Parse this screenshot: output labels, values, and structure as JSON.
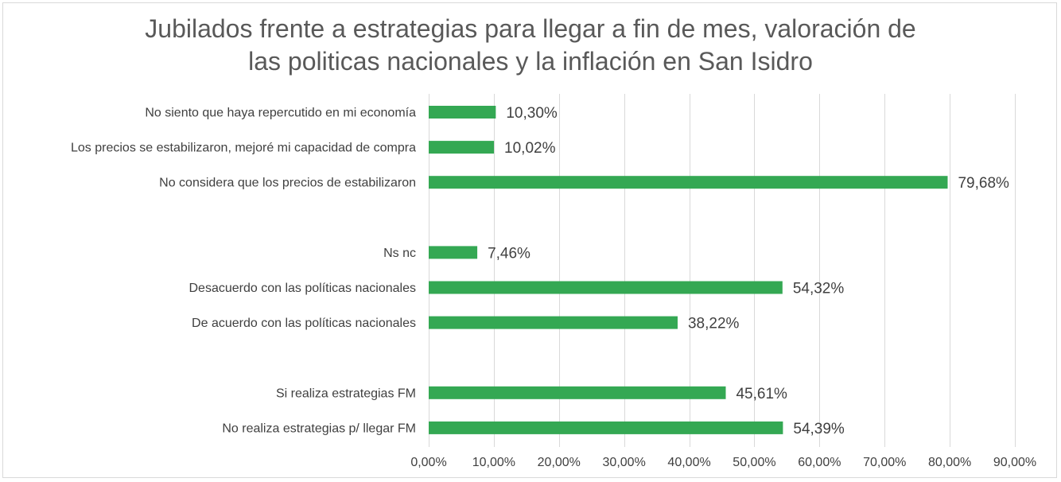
{
  "chart_data": {
    "type": "bar",
    "orientation": "horizontal",
    "title_lines": [
      "Jubilados frente a estrategias para llegar a fin de mes, valoración de",
      "las politicas nacionales y la inflación en San Isidro"
    ],
    "categories": [
      "No siento que haya repercutido en mi economía",
      "Los precios se estabilizaron, mejoré mi capacidad de compra",
      "No considera que los precios de estabilizaron",
      "",
      "Ns nc",
      "Desacuerdo con las políticas nacionales",
      "De acuerdo con las políticas nacionales",
      "",
      "Si realiza estrategias FM",
      "No realiza estrategias p/ llegar FM"
    ],
    "values": [
      10.3,
      10.02,
      79.68,
      null,
      7.46,
      54.32,
      38.22,
      null,
      45.61,
      54.39
    ],
    "data_labels": [
      "10,30%",
      "10,02%",
      "79,68%",
      "",
      "7,46%",
      "54,32%",
      "38,22%",
      "",
      "45,61%",
      "54,39%"
    ],
    "xlim": [
      0,
      90
    ],
    "xticks": [
      0,
      10,
      20,
      30,
      40,
      50,
      60,
      70,
      80,
      90
    ],
    "xtick_labels": [
      "0,00%",
      "10,00%",
      "20,00%",
      "30,00%",
      "40,00%",
      "50,00%",
      "60,00%",
      "70,00%",
      "80,00%",
      "90,00%"
    ],
    "grid": true,
    "legend": "none",
    "xlabel": "",
    "ylabel": "",
    "bar_color": "#34a853",
    "grid_color": "#d9d9d9"
  }
}
